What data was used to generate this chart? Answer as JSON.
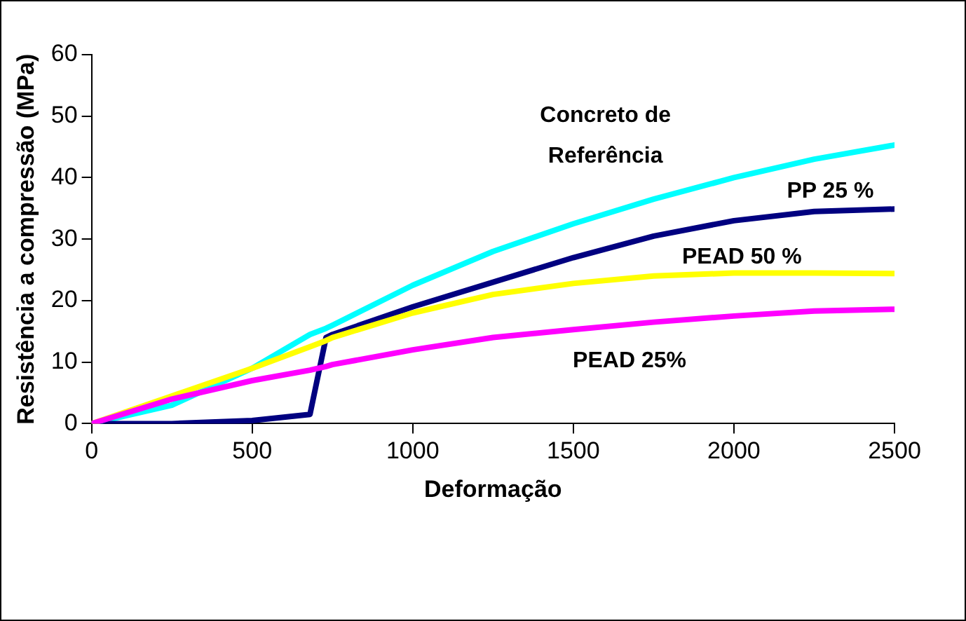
{
  "chart_data": {
    "type": "line",
    "xlabel": "Deformação",
    "ylabel": "Resistência a compressão (MPa)",
    "x": [
      0,
      250,
      500,
      680,
      730,
      750,
      1000,
      1250,
      1500,
      1750,
      2000,
      2250,
      2500
    ],
    "series": [
      {
        "name": "Concreto de Referência",
        "color": "#00ffff",
        "values": [
          0,
          3,
          9,
          14.5,
          15.5,
          16,
          22.5,
          28,
          32.5,
          36.5,
          40,
          43,
          45.3
        ]
      },
      {
        "name": "PP 25 %",
        "color": "#000080",
        "values": [
          0,
          0,
          0.5,
          1.5,
          14,
          14.5,
          19,
          23,
          27,
          30.5,
          33,
          34.5,
          34.9
        ]
      },
      {
        "name": "PEAD 50 %",
        "color": "#ffff00",
        "values": [
          0,
          4.5,
          9,
          12.5,
          13.5,
          14,
          18,
          21,
          22.8,
          24,
          24.5,
          24.5,
          24.4
        ]
      },
      {
        "name": "PEAD 25%",
        "color": "#ff00ff",
        "values": [
          0,
          4,
          7,
          8.7,
          9.3,
          9.6,
          12,
          14,
          15.3,
          16.5,
          17.5,
          18.3,
          18.6
        ]
      }
    ],
    "xlim": [
      0,
      2500
    ],
    "xticks": [
      0,
      500,
      1000,
      1500,
      2000,
      2500
    ],
    "ylim": [
      0,
      60
    ],
    "yticks": [
      0,
      10,
      20,
      30,
      40,
      50,
      60
    ],
    "grid": false,
    "legend": false,
    "marker": "none",
    "line_style": "solid"
  }
}
